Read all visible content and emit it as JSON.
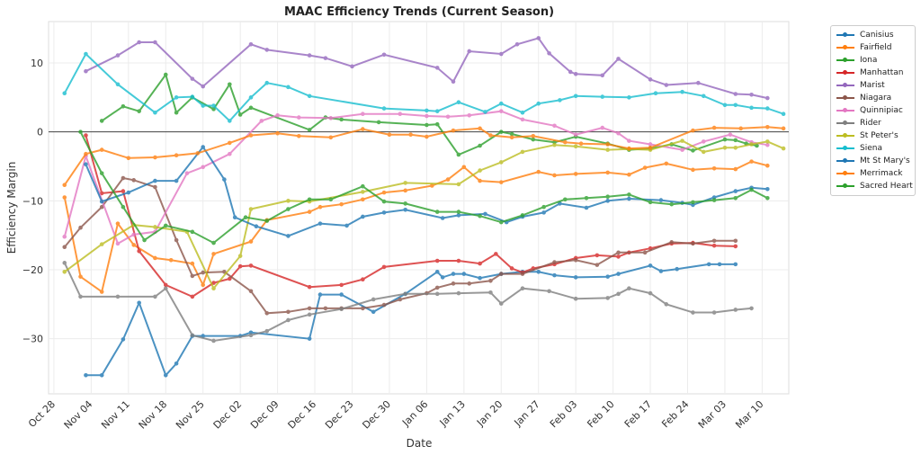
{
  "chart_data": {
    "type": "line",
    "title": "MAAC Efficiency Trends (Current Season)",
    "xlabel": "Date",
    "ylabel": "Efficiency Margin",
    "x_tick_labels": [
      "Oct 28",
      "Nov 04",
      "Nov 11",
      "Nov 18",
      "Nov 25",
      "Dec 02",
      "Dec 09",
      "Dec 16",
      "Dec 23",
      "Dec 30",
      "Jan 06",
      "Jan 13",
      "Jan 20",
      "Jan 27",
      "Feb 03",
      "Feb 10",
      "Feb 17",
      "Feb 24",
      "Mar 03",
      "Mar 10"
    ],
    "x_unit": "days since Oct 28",
    "xlim": [
      -1,
      138
    ],
    "ylim": [
      -38,
      16
    ],
    "y_ticks": [
      -30,
      -20,
      -10,
      0,
      10
    ],
    "grid": true,
    "zero_line": true,
    "legend_position": "outside-right",
    "series": [
      {
        "name": "Canisius",
        "color": "#1f77b4",
        "x": [
          6,
          9,
          13,
          16,
          21,
          23,
          26,
          28,
          35,
          37,
          48,
          50,
          54,
          60,
          66,
          72,
          73,
          75,
          77,
          80,
          84,
          88,
          91,
          94,
          98,
          104,
          106,
          112,
          114,
          117,
          123,
          125,
          128
        ],
        "y": [
          -35.3,
          -35.3,
          -30.1,
          -24.8,
          -35.3,
          -33.6,
          -29.6,
          -29.6,
          -29.6,
          -29.1,
          -30,
          -23.6,
          -23.6,
          -26.1,
          -23.5,
          -20.3,
          -21.1,
          -20.6,
          -20.6,
          -21.2,
          -20.6,
          -20.3,
          -20.3,
          -20.8,
          -21.1,
          -21,
          -20.6,
          -19.4,
          -20.2,
          -19.9,
          -19.2,
          -19.2,
          -19.2
        ]
      },
      {
        "name": "Fairfield",
        "color": "#ff7f0e",
        "x": [
          2,
          5,
          9,
          12,
          15,
          19,
          22,
          26,
          28,
          30,
          37,
          40,
          48,
          50,
          54,
          58,
          62,
          66,
          71,
          74,
          77,
          80,
          84,
          91,
          94,
          98,
          104,
          108,
          111,
          115,
          120,
          124,
          128,
          131,
          134
        ],
        "y": [
          -9.5,
          -21,
          -23.2,
          -13.3,
          -16.4,
          -18.3,
          -18.6,
          -19.1,
          -22.2,
          -17.7,
          -15.9,
          -12.8,
          -11.6,
          -10.9,
          -10.5,
          -9.8,
          -8.8,
          -8.5,
          -7.8,
          -6.9,
          -5.1,
          -7.1,
          -7.3,
          -5.8,
          -6.3,
          -6.1,
          -5.9,
          -6.2,
          -5.2,
          -4.6,
          -5.5,
          -5.3,
          -5.4,
          -4.3,
          -4.9
        ]
      },
      {
        "name": "Iona",
        "color": "#2ca02c",
        "x": [
          9,
          13,
          16,
          21,
          23,
          26,
          30,
          33,
          35,
          37,
          48,
          51,
          54,
          61,
          70,
          72,
          76,
          80,
          84,
          86,
          90,
          94,
          98,
          104,
          108,
          112,
          116,
          120,
          126,
          128,
          130,
          132
        ],
        "y": [
          1.6,
          3.7,
          3,
          8.3,
          2.8,
          5,
          3.3,
          6.9,
          2.5,
          3.5,
          0.3,
          2.1,
          1.8,
          1.4,
          1,
          1.1,
          -3.3,
          -2,
          0,
          -0.3,
          -1.1,
          -1.5,
          -0.7,
          -1.7,
          -2.6,
          -2.4,
          -1.8,
          -2.7,
          -1.1,
          -1.2,
          -1.7,
          -2
        ]
      },
      {
        "name": "Manhattan",
        "color": "#d62728",
        "x": [
          6,
          9,
          13,
          16,
          21,
          26,
          30,
          33,
          35,
          37,
          48,
          54,
          58,
          62,
          72,
          76,
          80,
          83,
          86,
          88,
          90,
          94,
          98,
          102,
          106,
          108,
          112,
          116,
          120,
          124,
          128
        ],
        "y": [
          -0.5,
          -8.9,
          -8.6,
          -17.3,
          -22.2,
          -23.9,
          -21.9,
          -21.3,
          -19.5,
          -19.4,
          -22.5,
          -22.2,
          -21.4,
          -19.6,
          -18.7,
          -18.7,
          -19.1,
          -17.7,
          -19.8,
          -20.4,
          -19.8,
          -19.2,
          -18.3,
          -17.9,
          -18.1,
          -17.5,
          -16.9,
          -16.2,
          -16.1,
          -16.5,
          -16.6
        ]
      },
      {
        "name": "Marist",
        "color": "#9467bd",
        "x": [
          6,
          12,
          16,
          19,
          26,
          28,
          37,
          40,
          48,
          51,
          56,
          62,
          72,
          75,
          78,
          84,
          87,
          91,
          93,
          97,
          98,
          103,
          106,
          112,
          115,
          121,
          128,
          131,
          134
        ],
        "y": [
          8.8,
          11.1,
          13,
          13,
          7.7,
          6.6,
          12.7,
          11.9,
          11.1,
          10.7,
          9.5,
          11.2,
          9.3,
          7.3,
          11.7,
          11.3,
          12.7,
          13.6,
          11.4,
          8.7,
          8.4,
          8.2,
          10.6,
          7.6,
          6.8,
          7.1,
          5.5,
          5.4,
          4.9
        ]
      },
      {
        "name": "Niagara",
        "color": "#8c564b",
        "x": [
          2,
          5,
          9,
          13,
          15,
          19,
          23,
          26,
          28,
          32,
          37,
          40,
          44,
          48,
          51,
          54,
          58,
          62,
          65,
          70,
          72,
          75,
          78,
          82,
          84,
          88,
          94,
          98,
          102,
          106,
          111,
          116,
          120,
          124,
          128
        ],
        "y": [
          -16.7,
          -13.9,
          -10.9,
          -6.7,
          -7,
          -8,
          -15.7,
          -20.9,
          -20.4,
          -20.3,
          -23.1,
          -26.3,
          -26.1,
          -25.6,
          -25.6,
          -25.6,
          -25.6,
          -25.1,
          -24.3,
          -23.4,
          -22.6,
          -22,
          -22,
          -21.6,
          -20.6,
          -20.6,
          -18.9,
          -18.6,
          -19.3,
          -17.5,
          -17.5,
          -16,
          -16.2,
          -15.8,
          -15.8
        ]
      },
      {
        "name": "Quinnipiac",
        "color": "#e377c2",
        "x": [
          2,
          6,
          12,
          15,
          19,
          25,
          28,
          33,
          39,
          42,
          46,
          52,
          58,
          65,
          70,
          74,
          78,
          84,
          88,
          94,
          98,
          103,
          106,
          108,
          112,
          118,
          122,
          127,
          131,
          134
        ],
        "y": [
          -15.2,
          -3.5,
          -16.2,
          -14.9,
          -14.5,
          -6,
          -5.1,
          -3.2,
          1.6,
          2.4,
          2.1,
          2,
          2.6,
          2.6,
          2.3,
          2.2,
          2.4,
          3,
          1.8,
          0.9,
          -0.4,
          0.6,
          -0.2,
          -1.3,
          -1.8,
          -2.6,
          -1.4,
          -0.4,
          -1.5,
          -1.9
        ]
      },
      {
        "name": "Rider",
        "color": "#7f7f7f",
        "x": [
          2,
          5,
          12,
          19,
          21,
          26,
          30,
          37,
          40,
          44,
          48,
          54,
          60,
          66,
          72,
          76,
          82,
          84,
          88,
          93,
          98,
          104,
          106,
          108,
          112,
          115,
          120,
          124,
          128,
          131
        ],
        "y": [
          -19,
          -23.9,
          -23.9,
          -23.9,
          -22.7,
          -29.5,
          -30.3,
          -29.5,
          -28.9,
          -27.3,
          -26.5,
          -25.7,
          -24.3,
          -23.5,
          -23.5,
          -23.4,
          -23.3,
          -24.9,
          -22.7,
          -23.1,
          -24.2,
          -24.1,
          -23.5,
          -22.7,
          -23.4,
          -25,
          -26.2,
          -26.2,
          -25.8,
          -25.6
        ]
      },
      {
        "name": "St Peter's",
        "color": "#bcbd22",
        "x": [
          2,
          9,
          15,
          19,
          25,
          30,
          35,
          37,
          44,
          48,
          58,
          66,
          76,
          80,
          84,
          88,
          94,
          98,
          104,
          108,
          112,
          118,
          122,
          126,
          128,
          131,
          134,
          137
        ],
        "y": [
          -20.3,
          -16.3,
          -13.5,
          -13.8,
          -14.5,
          -22.7,
          -18,
          -11.2,
          -10,
          -10.1,
          -8.7,
          -7.4,
          -7.6,
          -5.6,
          -4.4,
          -2.9,
          -1.9,
          -2.1,
          -2.6,
          -2.5,
          -2.6,
          -1.3,
          -2.9,
          -2.3,
          -2.3,
          -1.8,
          -1.4,
          -2.4
        ]
      },
      {
        "name": "Siena",
        "color": "#17becf",
        "x": [
          2,
          6,
          12,
          19,
          23,
          26,
          28,
          30,
          33,
          37,
          40,
          44,
          48,
          62,
          70,
          72,
          76,
          81,
          84,
          88,
          91,
          95,
          98,
          103,
          108,
          113,
          118,
          122,
          126,
          128,
          131,
          134,
          137
        ],
        "y": [
          5.6,
          11.3,
          6.9,
          2.8,
          5,
          5.1,
          3.8,
          3.8,
          1.6,
          5,
          7.1,
          6.5,
          5.2,
          3.4,
          3.1,
          3,
          4.3,
          2.9,
          4.1,
          2.8,
          4.1,
          4.6,
          5.2,
          5.1,
          5,
          5.6,
          5.8,
          5.2,
          3.9,
          3.9,
          3.5,
          3.4,
          2.6
        ]
      },
      {
        "name": "Mt St Mary's",
        "color": "#1f77b4",
        "x": [
          6,
          9,
          14,
          19,
          23,
          28,
          32,
          34,
          38,
          44,
          50,
          55,
          58,
          62,
          66,
          73,
          76,
          81,
          85,
          88,
          92,
          95,
          100,
          104,
          108,
          114,
          118,
          120,
          124,
          128,
          131,
          134
        ],
        "y": [
          -4.7,
          -10.1,
          -8.8,
          -7.1,
          -7.1,
          -2.2,
          -6.9,
          -12.4,
          -13.7,
          -15.1,
          -13.3,
          -13.6,
          -12.3,
          -11.7,
          -11.3,
          -12.5,
          -12.1,
          -11.9,
          -13.1,
          -12.3,
          -11.7,
          -10.4,
          -11,
          -10,
          -9.7,
          -9.9,
          -10.3,
          -10.6,
          -9.5,
          -8.6,
          -8.1,
          -8.3
        ]
      },
      {
        "name": "Merrimack",
        "color": "#ff7f0e",
        "x": [
          2,
          6,
          9,
          14,
          19,
          23,
          27,
          33,
          37,
          42,
          46,
          52,
          58,
          63,
          67,
          70,
          75,
          80,
          82,
          86,
          90,
          96,
          99,
          104,
          108,
          112,
          120,
          124,
          129,
          134,
          137
        ],
        "y": [
          -7.7,
          -3.2,
          -2.6,
          -3.8,
          -3.7,
          -3.4,
          -3.1,
          -1.6,
          -0.5,
          -0.2,
          -0.6,
          -0.8,
          0.4,
          -0.4,
          -0.4,
          -0.7,
          0.2,
          0.5,
          -0.5,
          -0.8,
          -0.6,
          -1.5,
          -1.7,
          -1.8,
          -2.4,
          -2.3,
          0.2,
          0.6,
          0.5,
          0.7,
          0.5
        ]
      },
      {
        "name": "Sacred Heart",
        "color": "#2ca02c",
        "x": [
          5,
          9,
          13,
          17,
          21,
          26,
          30,
          36,
          40,
          44,
          48,
          52,
          58,
          62,
          66,
          72,
          76,
          80,
          84,
          88,
          92,
          96,
          100,
          104,
          108,
          112,
          116,
          120,
          124,
          128,
          131,
          134
        ],
        "y": [
          0,
          -6,
          -10.9,
          -15.7,
          -13.6,
          -14.5,
          -16.1,
          -12.4,
          -12.9,
          -11.2,
          -9.8,
          -9.8,
          -7.9,
          -10.1,
          -10.4,
          -11.6,
          -11.6,
          -12.2,
          -13.1,
          -12.1,
          -10.9,
          -9.8,
          -9.6,
          -9.4,
          -9.1,
          -10.2,
          -10.5,
          -10.2,
          -9.9,
          -9.6,
          -8.4,
          -9.6
        ]
      }
    ]
  }
}
